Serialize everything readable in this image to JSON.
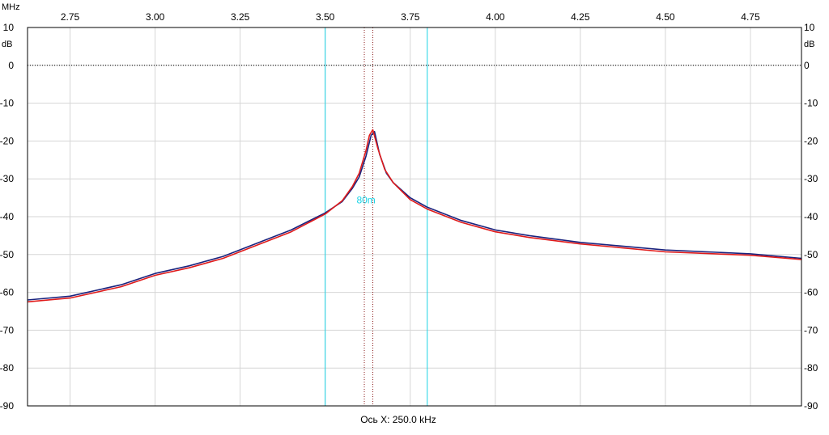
{
  "chart_data": {
    "type": "line",
    "title": "",
    "xlabel": "Ось X: 250.0 kHz",
    "x_unit": "MHz",
    "y_unit": "dB",
    "xlim": [
      2.625,
      4.9
    ],
    "ylim": [
      -90,
      10
    ],
    "x_ticks": [
      "2.75",
      "3.00",
      "3.25",
      "3.50",
      "3.75",
      "4.00",
      "4.25",
      "4.50",
      "4.75"
    ],
    "y_ticks": [
      "10",
      "0",
      "-10",
      "-20",
      "-30",
      "-40",
      "-50",
      "-60",
      "-70",
      "-80",
      "-90"
    ],
    "grid": true,
    "reference_line_db": 0,
    "band": {
      "label": "80m",
      "start_mhz": 3.5,
      "end_mhz": 3.8,
      "color": "#19d3e6"
    },
    "markers_mhz": [
      3.615,
      3.64
    ],
    "series": [
      {
        "color": "#1a237e",
        "x": [
          2.625,
          2.75,
          2.9,
          3.0,
          3.1,
          3.2,
          3.3,
          3.4,
          3.5,
          3.55,
          3.58,
          3.6,
          3.62,
          3.635,
          3.645,
          3.66,
          3.68,
          3.7,
          3.75,
          3.8,
          3.9,
          4.0,
          4.1,
          4.25,
          4.5,
          4.75,
          4.9
        ],
        "y": [
          -62,
          -61,
          -58,
          -55,
          -53,
          -50.5,
          -47,
          -43.5,
          -39,
          -36,
          -32.5,
          -29.5,
          -24,
          -18.5,
          -17.5,
          -23.5,
          -28.5,
          -31,
          -35,
          -37.5,
          -41,
          -43.5,
          -45,
          -46.8,
          -48.8,
          -49.8,
          -51
        ]
      },
      {
        "color": "#e01b1b",
        "x": [
          2.625,
          2.75,
          2.9,
          3.0,
          3.1,
          3.2,
          3.3,
          3.4,
          3.5,
          3.55,
          3.58,
          3.6,
          3.62,
          3.63,
          3.64,
          3.655,
          3.675,
          3.7,
          3.75,
          3.8,
          3.9,
          4.0,
          4.1,
          4.25,
          4.5,
          4.75,
          4.9
        ],
        "y": [
          -62.5,
          -61.5,
          -58.5,
          -55.5,
          -53.5,
          -51,
          -47.5,
          -44,
          -39.3,
          -35.8,
          -32,
          -28.5,
          -22.5,
          -18.5,
          -17,
          -22,
          -27.5,
          -31,
          -35.5,
          -38,
          -41.5,
          -44,
          -45.5,
          -47.2,
          -49.3,
          -50.2,
          -51.3
        ]
      }
    ]
  }
}
